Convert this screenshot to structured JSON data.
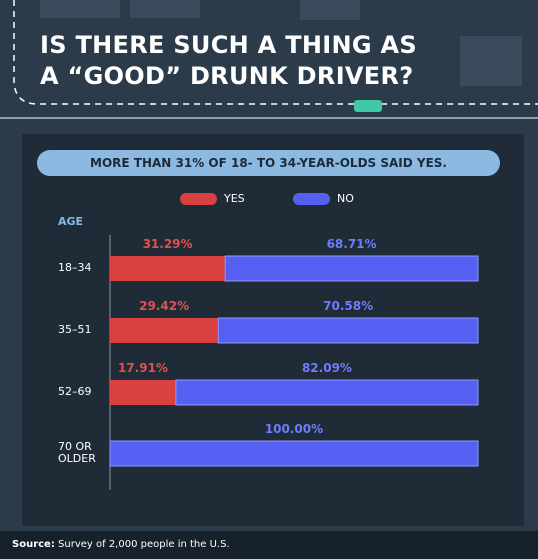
{
  "chart_data": {
    "type": "stacked-bar-horizontal",
    "title": "IS THERE SUCH A THING AS A “GOOD” DRUNK DRIVER?",
    "subtitle": "MORE THAN 31% OF 18- TO 34-YEAR-OLDS SAID YES.",
    "y_axis_label": "AGE",
    "categories": [
      "18–34",
      "35–51",
      "52–69",
      "70 OR OLDER"
    ],
    "series": [
      {
        "name": "YES",
        "color": "#d8413f",
        "label_color": "#e2504c",
        "values": [
          31.29,
          29.42,
          17.91,
          0
        ],
        "value_labels": [
          "31.29%",
          "29.42%",
          "17.91%",
          null
        ]
      },
      {
        "name": "NO",
        "color": "#5560f2",
        "label_color": "#6f7cff",
        "values": [
          68.71,
          70.58,
          82.09,
          100
        ],
        "value_labels": [
          "68.71%",
          "70.58%",
          "82.09%",
          "100.00%"
        ]
      }
    ],
    "xlim": [
      0,
      100
    ],
    "source_label": "Source:",
    "source": "Survey of 2,000 people in the U.S."
  }
}
